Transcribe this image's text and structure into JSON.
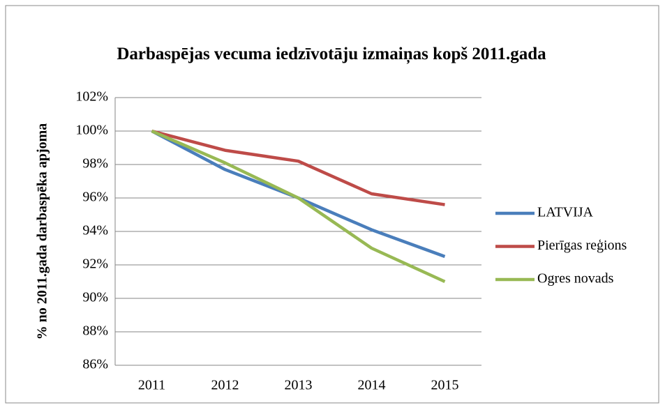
{
  "chart_data": {
    "type": "line",
    "title": "Darbaspējas vecuma iedzīvotāju izmaiņas kopš 2011.gada",
    "y_label": "% no 2011.gada darbaspēka apjoma",
    "categories": [
      "2011",
      "2012",
      "2013",
      "2014",
      "2015"
    ],
    "series": [
      {
        "name": "LATVIJA",
        "color": "#4a7ebb",
        "values": [
          100,
          97.7,
          96.0,
          94.1,
          92.5
        ]
      },
      {
        "name": "Pierīgas reģions",
        "color": "#be4b48",
        "values": [
          100,
          98.85,
          98.2,
          96.25,
          95.6
        ]
      },
      {
        "name": "Ogres novads",
        "color": "#98b954",
        "values": [
          100,
          98.1,
          96.0,
          93.0,
          91.0
        ]
      }
    ],
    "ylim": [
      86,
      102
    ],
    "yticks": [
      {
        "value": 86,
        "label": "86%"
      },
      {
        "value": 88,
        "label": "88%"
      },
      {
        "value": 90,
        "label": "90%"
      },
      {
        "value": 92,
        "label": "92%"
      },
      {
        "value": 94,
        "label": "94%"
      },
      {
        "value": 96,
        "label": "96%"
      },
      {
        "value": 98,
        "label": "98%"
      },
      {
        "value": 100,
        "label": "100%"
      },
      {
        "value": 102,
        "label": "102%"
      }
    ],
    "grid": true,
    "legend": "right"
  }
}
